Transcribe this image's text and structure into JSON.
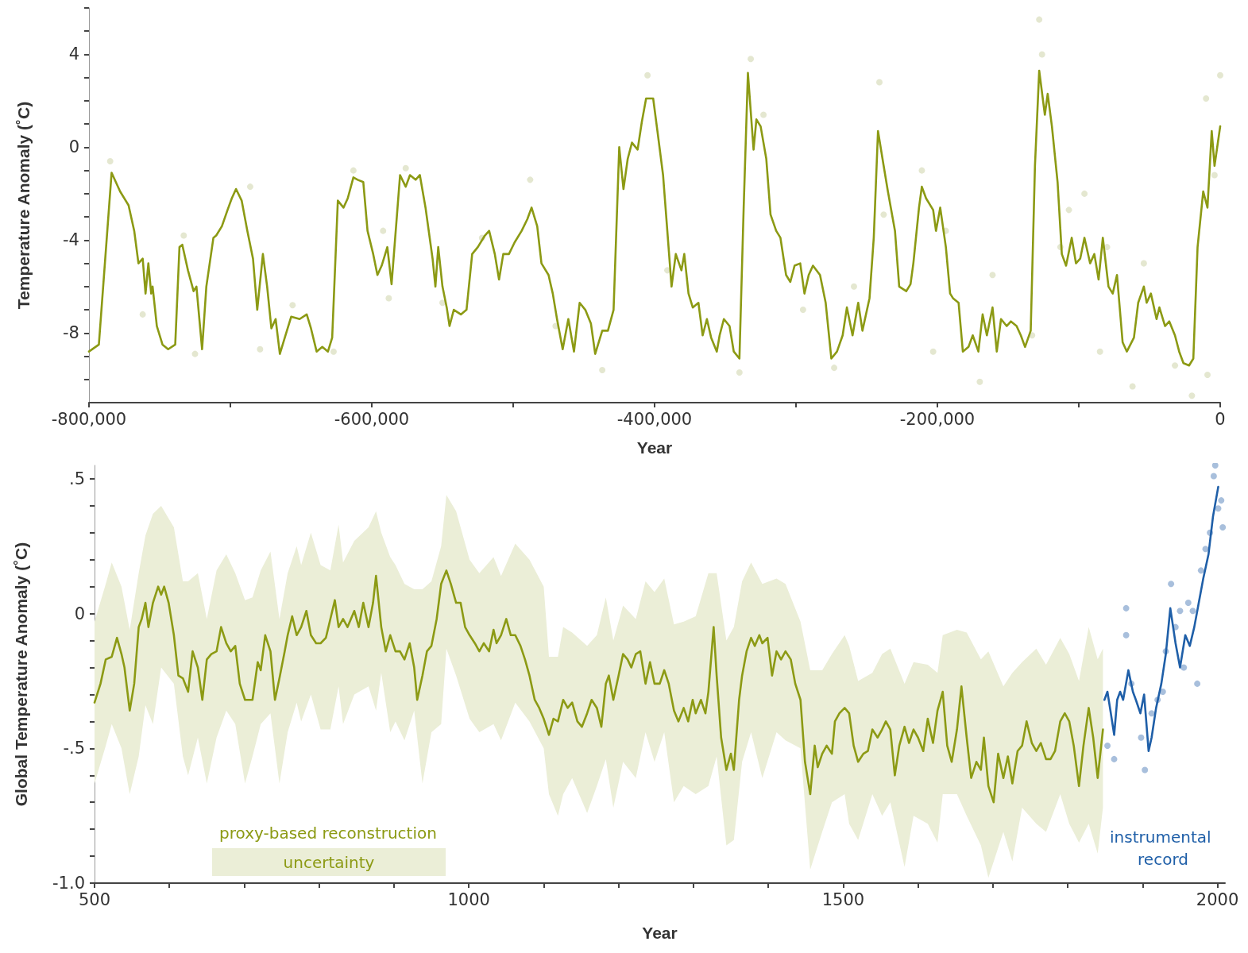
{
  "chart_data": [
    {
      "type": "line",
      "xlabel": "Year",
      "ylabel": "Temperature Anomaly (˚C)",
      "xlim": [
        -800000,
        0
      ],
      "xticks": [
        {
          "value": -800000,
          "label": "-800,000"
        },
        {
          "value": -700000,
          "label": null
        },
        {
          "value": -600000,
          "label": "-600,000"
        },
        {
          "value": -500000,
          "label": null
        },
        {
          "value": -400000,
          "label": "-400,000"
        },
        {
          "value": -300000,
          "label": null
        },
        {
          "value": -200000,
          "label": "-200,000"
        },
        {
          "value": -100000,
          "label": null
        },
        0
      ],
      "ylim": [
        -11,
        6
      ],
      "yticks": [
        {
          "value": -10,
          "label": null
        },
        {
          "value": -9,
          "label": null
        },
        -8,
        {
          "value": -7,
          "label": null
        },
        {
          "value": -6,
          "label": null
        },
        {
          "value": -5,
          "label": null
        },
        -4,
        {
          "value": -3,
          "label": null
        },
        {
          "value": -2,
          "label": null
        },
        {
          "value": -1,
          "label": null
        },
        0,
        {
          "value": 1,
          "label": null
        },
        {
          "value": 2,
          "label": null
        },
        {
          "value": 3,
          "label": null
        },
        4,
        {
          "value": 5,
          "label": null
        },
        {
          "value": 6,
          "label": null
        }
      ],
      "series": [
        {
          "type": "scatter",
          "color": "#e4e7d0",
          "x": [
            -785000,
            -762000,
            -758000,
            -725000,
            -733000,
            -686000,
            -679000,
            -656000,
            -627000,
            -613000,
            -592000,
            -588000,
            -576000,
            -550000,
            -522000,
            -488000,
            -470000,
            -437000,
            -405000,
            -391000,
            -340000,
            -332000,
            -323000,
            -295000,
            -273000,
            -259000,
            -241000,
            -238000,
            -211000,
            -203000,
            -194000,
            -170000,
            -161000,
            -133000,
            -128000,
            -126000,
            -113000,
            -107000,
            -96000,
            -85000,
            -80000,
            -62000,
            -54000,
            -32000,
            -20000,
            -9000,
            -10000,
            0,
            -4000
          ],
          "values": [
            -0.6,
            -7.2,
            null,
            -8.9,
            -3.8,
            -1.7,
            -8.7,
            -6.8,
            -8.8,
            -1.0,
            -3.6,
            -6.5,
            -0.9,
            -6.7,
            -3.9,
            -1.4,
            -7.7,
            -9.6,
            3.1,
            -5.3,
            -9.7,
            3.8,
            1.4,
            -7.0,
            -9.5,
            -6.0,
            2.8,
            -2.9,
            -1.0,
            -8.8,
            -3.6,
            -10.1,
            -5.5,
            -8.1,
            5.5,
            4.0,
            -4.3,
            -2.7,
            -2.0,
            -8.8,
            -4.3,
            -10.3,
            -5.0,
            -9.4,
            -10.7,
            -9.8,
            2.1,
            3.1,
            -1.2
          ]
        },
        {
          "type": "line",
          "color": "#8c9a14",
          "x": [
            -800000,
            -793000,
            -784000,
            -778000,
            -772000,
            -768000,
            -765000,
            -762000,
            -760000,
            -758000,
            -756000,
            -755000,
            -752000,
            -748000,
            -744000,
            -739000,
            -736000,
            -734000,
            -730000,
            -726000,
            -724000,
            -720000,
            -717000,
            -712000,
            -710000,
            -706000,
            -702000,
            -699000,
            -696000,
            -692000,
            -688000,
            -684000,
            -681000,
            -677000,
            -674000,
            -671000,
            -668000,
            -665000,
            -661000,
            -657000,
            -651000,
            -646000,
            -643000,
            -639000,
            -635000,
            -631000,
            -628000,
            -624000,
            -620000,
            -617000,
            -613000,
            -610000,
            -606000,
            -603000,
            -599000,
            -596000,
            -593000,
            -589000,
            -586000,
            -580000,
            -576000,
            -573000,
            -569000,
            -566000,
            -562000,
            -557000,
            -555000,
            -553000,
            -550000,
            -547000,
            -545000,
            -542000,
            -537000,
            -533000,
            -529000,
            -525000,
            -520000,
            -517000,
            -513000,
            -510000,
            -507000,
            -503000,
            -499000,
            -494000,
            -490000,
            -487000,
            -483000,
            -480000,
            -475000,
            -472000,
            -469000,
            -465000,
            -461000,
            -457000,
            -453000,
            -449000,
            -445000,
            -442000,
            -437000,
            -433000,
            -429000,
            -425000,
            -422000,
            -419000,
            -416000,
            -412000,
            -409000,
            -406000,
            -401000,
            -398000,
            -394000,
            -391000,
            -388000,
            -385000,
            -381000,
            -379000,
            -376000,
            -373000,
            -369000,
            -366000,
            -363000,
            -360000,
            -356000,
            -354000,
            -351000,
            -347000,
            -344000,
            -340000,
            -337000,
            -334000,
            -330000,
            -328000,
            -325000,
            -321000,
            -318000,
            -314000,
            -311000,
            -307000,
            -304000,
            -301000,
            -297000,
            -294000,
            -291000,
            -288000,
            -283000,
            -279000,
            -275000,
            -271000,
            -267000,
            -264000,
            -260000,
            -256000,
            -253000,
            -248000,
            -245000,
            -242000,
            -238000,
            -235000,
            -230000,
            -227000,
            -222000,
            -219000,
            -217000,
            -213000,
            -211000,
            -208000,
            -203000,
            -201000,
            -198000,
            -194000,
            -191000,
            -189000,
            -185000,
            -182000,
            -178000,
            -175000,
            -171000,
            -168000,
            -165000,
            -161000,
            -158000,
            -155000,
            -151000,
            -148000,
            -144000,
            -141000,
            -138000,
            -134000,
            -131000,
            -128000,
            -124000,
            -122000,
            -119000,
            -115000,
            -112000,
            -109000,
            -105000,
            -102000,
            -99000,
            -96000,
            -92000,
            -89000,
            -86000,
            -83000,
            -79000,
            -76000,
            -73000,
            -69000,
            -66000,
            -61000,
            -58000,
            -54000,
            -52000,
            -49000,
            -45000,
            -43000,
            -39000,
            -36000,
            -32000,
            -29000,
            -26000,
            -22000,
            -19000,
            -16000,
            -12000,
            -9000,
            -6000,
            -4000,
            0
          ],
          "values": [
            -8.8,
            -8.5,
            -1.1,
            -1.9,
            -2.5,
            -3.6,
            -5.0,
            -4.8,
            -6.3,
            -5.0,
            -6.3,
            -6.0,
            -7.7,
            -8.5,
            -8.7,
            -8.5,
            -4.3,
            -4.2,
            -5.3,
            -6.2,
            -6.0,
            -8.7,
            -6.0,
            -3.9,
            -3.8,
            -3.4,
            -2.7,
            -2.2,
            -1.8,
            -2.3,
            -3.6,
            -4.8,
            -7.0,
            -4.6,
            -6.0,
            -7.8,
            -7.4,
            -8.9,
            -8.1,
            -7.3,
            -7.4,
            -7.2,
            -7.8,
            -8.8,
            -8.6,
            -8.8,
            -8.2,
            -2.3,
            -2.6,
            -2.2,
            -1.3,
            -1.4,
            -1.5,
            -3.6,
            -4.6,
            -5.5,
            -5.1,
            -4.3,
            -5.9,
            -1.2,
            -1.7,
            -1.2,
            -1.4,
            -1.2,
            -2.6,
            -4.8,
            -6.0,
            -4.3,
            -6.0,
            -6.9,
            -7.7,
            -7.0,
            -7.2,
            -7.0,
            -4.6,
            -4.3,
            -3.8,
            -3.6,
            -4.6,
            -5.7,
            -4.6,
            -4.6,
            -4.1,
            -3.6,
            -3.1,
            -2.6,
            -3.4,
            -5.0,
            -5.5,
            -6.3,
            -7.4,
            -8.7,
            -7.4,
            -8.8,
            -6.7,
            -7.0,
            -7.6,
            -8.9,
            -7.9,
            -7.9,
            -7.0,
            0.0,
            -1.8,
            -0.5,
            0.2,
            -0.1,
            1.1,
            2.1,
            2.1,
            0.7,
            -1.2,
            -3.6,
            -6.0,
            -4.6,
            -5.3,
            -4.6,
            -6.3,
            -6.9,
            -6.7,
            -8.1,
            -7.4,
            -8.2,
            -8.8,
            -8.1,
            -7.4,
            -7.7,
            -8.8,
            -9.1,
            -2.6,
            3.2,
            -0.1,
            1.2,
            0.9,
            -0.5,
            -2.9,
            -3.6,
            -3.9,
            -5.5,
            -5.8,
            -5.1,
            -5.0,
            -6.3,
            -5.5,
            -5.1,
            -5.5,
            -6.7,
            -9.1,
            -8.8,
            -8.1,
            -6.9,
            -8.1,
            -6.7,
            -7.9,
            -6.5,
            -3.9,
            0.7,
            -0.8,
            -1.9,
            -3.6,
            -6.0,
            -6.2,
            -5.9,
            -5.0,
            -2.6,
            -1.7,
            -2.2,
            -2.7,
            -3.6,
            -2.6,
            -4.3,
            -6.3,
            -6.5,
            -6.7,
            -8.8,
            -8.6,
            -8.1,
            -8.8,
            -7.2,
            -8.1,
            -6.9,
            -8.8,
            -7.4,
            -7.7,
            -7.5,
            -7.7,
            -8.1,
            -8.6,
            -7.9,
            -0.8,
            3.3,
            1.4,
            2.3,
            0.9,
            -1.5,
            -4.6,
            -5.1,
            -3.9,
            -5.0,
            -4.8,
            -3.9,
            -5.0,
            -4.6,
            -5.7,
            -3.9,
            -6.0,
            -6.3,
            -5.5,
            -8.4,
            -8.8,
            -8.2,
            -6.7,
            -6.0,
            -6.7,
            -6.3,
            -7.4,
            -6.9,
            -7.7,
            -7.5,
            -8.1,
            -8.8,
            -9.3,
            -9.4,
            -9.1,
            -4.3,
            -1.9,
            -2.6,
            0.7,
            -0.8,
            0.9
          ]
        }
      ]
    },
    {
      "type": "line",
      "xlabel": "Year",
      "ylabel": "Global Temperature Anomaly (˚C)",
      "annotations": [
        "uncertainty"
      ],
      "xlim": [
        500,
        2010
      ],
      "xticks": [
        500,
        {
          "value": 600,
          "label": null
        },
        {
          "value": 700,
          "label": null
        },
        {
          "value": 800,
          "label": null
        },
        {
          "value": 900,
          "label": null
        },
        1000,
        {
          "value": 1100,
          "label": null
        },
        {
          "value": 1200,
          "label": null
        },
        {
          "value": 1300,
          "label": null
        },
        {
          "value": 1400,
          "label": null
        },
        1500,
        {
          "value": 1600,
          "label": null
        },
        {
          "value": 1700,
          "label": null
        },
        {
          "value": 1800,
          "label": null
        },
        {
          "value": 1900,
          "label": null
        },
        2000
      ],
      "ylim": [
        -1.0,
        0.55
      ],
      "yticks": [
        {
          "value": -1.0,
          "label": "-1.0"
        },
        {
          "value": -0.9,
          "label": null
        },
        {
          "value": -0.8,
          "label": null
        },
        {
          "value": -0.7,
          "label": null
        },
        {
          "value": -0.6,
          "label": null
        },
        {
          "value": -0.5,
          "label": "-.5"
        },
        {
          "value": -0.4,
          "label": null
        },
        {
          "value": -0.3,
          "label": null
        },
        {
          "value": -0.2,
          "label": null
        },
        {
          "value": -0.1,
          "label": null
        },
        0,
        {
          "value": 0.1,
          "label": null
        },
        {
          "value": 0.2,
          "label": null
        },
        {
          "value": 0.3,
          "label": null
        },
        {
          "value": 0.4,
          "label": null
        },
        {
          "value": 0.5,
          "label": ".5"
        }
      ],
      "series": [
        {
          "type": "line",
          "name": "proxy-based reconstruction",
          "color": "#8c9a14",
          "upper": [
            -0.03,
            null,
            0.11,
            0.19,
            null,
            0.1,
            null,
            -0.06,
            null,
            0.15,
            null,
            0.29,
            null,
            0.37,
            null,
            0.4,
            null,
            null,
            0.32,
            null,
            0.12,
            0.12,
            null,
            0.15,
            null,
            -0.02,
            null,
            0.16,
            null,
            0.22,
            null,
            0.15,
            null,
            0.05,
            0.06,
            null,
            0.16,
            null,
            0.23,
            null,
            -0.02,
            null,
            0.15,
            null,
            0.25,
            0.18,
            null,
            0.3,
            null,
            0.18,
            null,
            0.16,
            null,
            0.33,
            0.19,
            null,
            0.27,
            null,
            null,
            0.32,
            null,
            0.38,
            0.3,
            null,
            0.21,
            0.18,
            null,
            0.11,
            null,
            0.09,
            null,
            0.09,
            null,
            0.12,
            null,
            0.25,
            0.44,
            null,
            0.38,
            null,
            null,
            0.2,
            null,
            0.15,
            null,
            null,
            0.21,
            null,
            0.14,
            null,
            null,
            0.26,
            null,
            null,
            0.2,
            null,
            null,
            0.1,
            -0.16,
            null,
            -0.16,
            -0.05,
            null,
            -0.07,
            null,
            null,
            -0.12,
            null,
            -0.08,
            null,
            0.06,
            null,
            -0.1,
            null,
            0.03,
            null,
            null,
            -0.02,
            null,
            0.12,
            null,
            0.08,
            null,
            0.13,
            null,
            -0.04,
            null,
            -0.03,
            null,
            null,
            -0.01,
            null,
            null,
            0.15,
            null,
            0.15,
            null,
            -0.1,
            null,
            -0.05,
            null,
            0.12,
            null,
            0.19,
            null,
            null,
            0.11,
            null,
            null,
            0.13,
            null,
            0.11,
            null,
            null,
            -0.03,
            null,
            -0.21,
            null,
            null,
            -0.21,
            null,
            -0.15,
            null,
            null,
            -0.08,
            -0.12,
            null,
            -0.25,
            null,
            null,
            -0.22,
            null,
            -0.15,
            null,
            -0.13,
            null,
            null,
            -0.26,
            null,
            -0.18,
            null,
            null,
            -0.19,
            null,
            -0.22,
            -0.08,
            null,
            null,
            -0.06,
            null,
            -0.07,
            null,
            null,
            -0.17,
            null,
            -0.14,
            null,
            null,
            -0.27,
            null,
            -0.22,
            null,
            -0.18,
            null,
            null,
            -0.13,
            null,
            -0.19,
            null,
            null,
            -0.09,
            null,
            -0.15,
            null,
            -0.25,
            null,
            -0.05,
            null,
            -0.17,
            -0.13
          ],
          "lower": [
            -0.63,
            null,
            -0.49,
            -0.41,
            null,
            -0.5,
            null,
            -0.67,
            null,
            -0.53,
            null,
            -0.34,
            null,
            -0.41,
            null,
            -0.2,
            null,
            null,
            -0.26,
            null,
            -0.53,
            -0.6,
            null,
            -0.46,
            null,
            -0.63,
            null,
            -0.46,
            null,
            -0.36,
            null,
            -0.41,
            null,
            -0.63,
            -0.53,
            null,
            -0.41,
            null,
            -0.37,
            null,
            -0.63,
            null,
            -0.44,
            null,
            -0.33,
            -0.4,
            null,
            -0.3,
            null,
            -0.43,
            null,
            -0.43,
            null,
            -0.27,
            -0.41,
            null,
            -0.3,
            null,
            null,
            -0.27,
            null,
            -0.36,
            -0.22,
            null,
            -0.44,
            -0.4,
            null,
            -0.47,
            null,
            -0.36,
            null,
            -0.63,
            null,
            -0.44,
            null,
            -0.41,
            -0.13,
            null,
            -0.23,
            null,
            null,
            -0.39,
            null,
            -0.44,
            null,
            null,
            -0.41,
            null,
            -0.47,
            null,
            null,
            -0.33,
            null,
            null,
            -0.4,
            null,
            null,
            -0.5,
            -0.67,
            null,
            -0.75,
            -0.67,
            null,
            -0.61,
            null,
            null,
            -0.74,
            null,
            -0.64,
            null,
            -0.54,
            null,
            -0.72,
            null,
            -0.55,
            null,
            null,
            -0.61,
            null,
            -0.44,
            null,
            -0.55,
            null,
            -0.44,
            null,
            -0.7,
            null,
            -0.64,
            null,
            null,
            -0.67,
            null,
            null,
            -0.64,
            null,
            -0.53,
            null,
            -0.86,
            null,
            -0.84,
            null,
            -0.55,
            null,
            -0.44,
            null,
            null,
            -0.61,
            null,
            null,
            -0.44,
            null,
            -0.47,
            null,
            null,
            -0.5,
            null,
            -0.95,
            null,
            null,
            -0.81,
            null,
            -0.7,
            null,
            null,
            -0.67,
            -0.78,
            null,
            -0.84,
            null,
            null,
            -0.67,
            null,
            -0.75,
            null,
            -0.7,
            null,
            null,
            -0.94,
            null,
            -0.75,
            null,
            null,
            -0.78,
            null,
            -0.85,
            -0.67,
            null,
            null,
            -0.67,
            null,
            -0.75,
            null,
            null,
            -0.86,
            null,
            -0.98,
            null,
            null,
            -0.81,
            null,
            -0.92,
            null,
            -0.72,
            null,
            null,
            -0.78,
            null,
            -0.81,
            null,
            null,
            -0.67,
            null,
            -0.78,
            null,
            -0.85,
            null,
            -0.78,
            null,
            -0.89,
            -0.72
          ],
          "x": [
            500,
            508,
            515,
            523,
            530,
            536,
            540,
            547,
            553,
            559,
            563,
            568,
            572,
            578,
            585,
            589,
            593,
            599,
            606,
            612,
            618,
            625,
            631,
            638,
            644,
            650,
            656,
            663,
            669,
            676,
            682,
            688,
            694,
            701,
            711,
            718,
            722,
            728,
            735,
            741,
            747,
            754,
            758,
            764,
            770,
            776,
            783,
            789,
            796,
            802,
            809,
            815,
            821,
            826,
            832,
            838,
            847,
            853,
            859,
            866,
            872,
            876,
            883,
            889,
            895,
            902,
            908,
            914,
            921,
            927,
            931,
            938,
            944,
            950,
            957,
            963,
            970,
            976,
            983,
            989,
            995,
            1001,
            1008,
            1014,
            1020,
            1027,
            1033,
            1037,
            1043,
            1050,
            1056,
            1062,
            1069,
            1075,
            1081,
            1088,
            1094,
            1100,
            1107,
            1113,
            1119,
            1126,
            1132,
            1138,
            1145,
            1151,
            1158,
            1164,
            1171,
            1177,
            1183,
            1187,
            1193,
            1200,
            1206,
            1212,
            1217,
            1223,
            1229,
            1236,
            1242,
            1248,
            1255,
            1261,
            1267,
            1274,
            1280,
            1287,
            1293,
            1299,
            1303,
            1310,
            1316,
            1320,
            1327,
            1331,
            1337,
            1344,
            1350,
            1354,
            1361,
            1365,
            1371,
            1377,
            1382,
            1388,
            1392,
            1399,
            1405,
            1411,
            1417,
            1423,
            1430,
            1436,
            1443,
            1449,
            1456,
            1462,
            1466,
            1472,
            1478,
            1485,
            1489,
            1495,
            1502,
            1508,
            1514,
            1520,
            1527,
            1533,
            1539,
            1546,
            1552,
            1557,
            1563,
            1569,
            1575,
            1582,
            1588,
            1594,
            1600,
            1607,
            1613,
            1620,
            1626,
            1633,
            1639,
            1645,
            1652,
            1658,
            1665,
            1671,
            1678,
            1684,
            1688,
            1694,
            1701,
            1707,
            1714,
            1720,
            1726,
            1733,
            1739,
            1745,
            1752,
            1758,
            1764,
            1771,
            1777,
            1783,
            1790,
            1796,
            1802,
            1808,
            1815,
            1821,
            1828,
            1834,
            1840,
            1847
          ],
          "values": [
            -0.33,
            -0.26,
            -0.17,
            -0.16,
            -0.09,
            -0.15,
            -0.2,
            -0.36,
            -0.26,
            -0.05,
            -0.02,
            0.04,
            -0.05,
            0.04,
            0.1,
            0.07,
            0.1,
            0.04,
            -0.08,
            -0.23,
            -0.24,
            -0.29,
            -0.14,
            -0.2,
            -0.32,
            -0.17,
            -0.15,
            -0.14,
            -0.05,
            -0.11,
            -0.14,
            -0.12,
            -0.26,
            -0.32,
            -0.32,
            -0.18,
            -0.21,
            -0.08,
            -0.14,
            -0.32,
            -0.24,
            -0.14,
            -0.08,
            -0.01,
            -0.08,
            -0.05,
            0.01,
            -0.08,
            -0.11,
            -0.11,
            -0.09,
            -0.02,
            0.05,
            -0.05,
            -0.02,
            -0.05,
            0.01,
            -0.05,
            0.04,
            -0.05,
            0.04,
            0.14,
            -0.05,
            -0.14,
            -0.08,
            -0.14,
            -0.14,
            -0.17,
            -0.11,
            -0.2,
            -0.32,
            -0.23,
            -0.14,
            -0.12,
            -0.02,
            0.11,
            0.16,
            0.11,
            0.04,
            0.04,
            -0.05,
            -0.08,
            -0.11,
            -0.14,
            -0.11,
            -0.14,
            -0.06,
            -0.11,
            -0.08,
            -0.02,
            -0.08,
            -0.08,
            -0.12,
            -0.17,
            -0.23,
            -0.32,
            -0.35,
            -0.39,
            -0.45,
            -0.39,
            -0.4,
            -0.32,
            -0.35,
            -0.33,
            -0.4,
            -0.42,
            -0.37,
            -0.32,
            -0.35,
            -0.42,
            -0.26,
            -0.23,
            -0.32,
            -0.23,
            -0.15,
            -0.17,
            -0.2,
            -0.15,
            -0.14,
            -0.26,
            -0.18,
            -0.26,
            -0.26,
            -0.21,
            -0.26,
            -0.36,
            -0.4,
            -0.35,
            -0.4,
            -0.32,
            -0.37,
            -0.32,
            -0.37,
            -0.29,
            -0.05,
            -0.23,
            -0.46,
            -0.58,
            -0.52,
            -0.58,
            -0.32,
            -0.23,
            -0.14,
            -0.09,
            -0.12,
            -0.08,
            -0.11,
            -0.09,
            -0.23,
            -0.14,
            -0.17,
            -0.14,
            -0.17,
            -0.26,
            -0.32,
            -0.55,
            -0.67,
            -0.49,
            -0.57,
            -0.52,
            -0.49,
            -0.52,
            -0.4,
            -0.37,
            -0.35,
            -0.37,
            -0.49,
            -0.55,
            -0.52,
            -0.51,
            -0.43,
            -0.46,
            -0.43,
            -0.4,
            -0.43,
            -0.6,
            -0.49,
            -0.42,
            -0.48,
            -0.43,
            -0.46,
            -0.51,
            -0.39,
            -0.48,
            -0.36,
            -0.29,
            -0.49,
            -0.55,
            -0.43,
            -0.27,
            -0.46,
            -0.61,
            -0.55,
            -0.58,
            -0.46,
            -0.64,
            -0.7,
            -0.52,
            -0.61,
            -0.53,
            -0.63,
            -0.51,
            -0.49,
            -0.4,
            -0.48,
            -0.51,
            -0.48,
            -0.54,
            -0.54,
            -0.51,
            -0.4,
            -0.37,
            -0.4,
            -0.49,
            -0.64,
            -0.49,
            -0.35,
            -0.46,
            -0.61,
            -0.43
          ]
        },
        {
          "type": "line",
          "name": "instrumental record",
          "color": "#1f5fa8",
          "x": [
            1849,
            1853,
            1857,
            1862,
            1866,
            1870,
            1874,
            1881,
            1887,
            1891,
            1897,
            1902,
            1908,
            1912,
            1918,
            1925,
            1931,
            1937,
            1944,
            1950,
            1957,
            1963,
            1969,
            1975,
            1981,
            1988,
            1994,
            2001
          ],
          "values": [
            -0.32,
            -0.29,
            -0.36,
            -0.45,
            -0.32,
            -0.29,
            -0.32,
            -0.21,
            -0.29,
            -0.32,
            -0.37,
            -0.3,
            -0.51,
            -0.46,
            -0.35,
            -0.26,
            -0.15,
            0.02,
            -0.11,
            -0.2,
            -0.08,
            -0.12,
            -0.05,
            0.04,
            0.13,
            0.22,
            0.36,
            0.47
          ]
        },
        {
          "type": "scatter",
          "color": "#a8bfdc",
          "x": [
            1853,
            1862,
            1878,
            1878,
            1885,
            1898,
            1903,
            1912,
            1920,
            1927,
            1931,
            1938,
            1944,
            1950,
            1955,
            1961,
            1967,
            1973,
            1978,
            1984,
            1990,
            1995,
            1997,
            2001,
            2005,
            2007
          ],
          "values": [
            -0.49,
            -0.54,
            0.02,
            -0.08,
            -0.26,
            -0.46,
            -0.58,
            -0.37,
            -0.32,
            -0.29,
            -0.14,
            0.11,
            -0.05,
            0.01,
            -0.2,
            0.04,
            0.01,
            -0.26,
            0.16,
            0.24,
            0.3,
            0.51,
            0.55,
            0.39,
            0.42,
            0.32
          ]
        }
      ]
    }
  ]
}
